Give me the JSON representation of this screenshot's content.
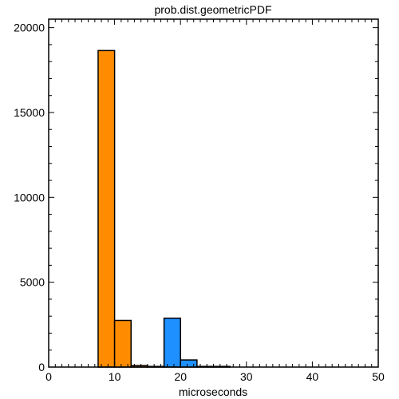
{
  "chart_data": {
    "type": "bar",
    "title": "prob.dist.geometricPDF",
    "xlabel": "microseconds",
    "ylabel": "",
    "xlim": [
      0,
      50
    ],
    "ylim": [
      0,
      20500
    ],
    "x_ticks": [
      0,
      10,
      20,
      30,
      40,
      50
    ],
    "y_ticks": [
      0,
      5000,
      10000,
      15000,
      20000
    ],
    "x_tick_labels": [
      "0",
      "10",
      "20",
      "30",
      "40",
      "50"
    ],
    "y_tick_labels": [
      "0",
      "5000",
      "10000",
      "15000",
      "20000"
    ],
    "grid": false,
    "legend": "none",
    "series": [
      {
        "color": "#ff8c00",
        "bins": [
          {
            "x0": 7.5,
            "x1": 10.0,
            "value": 18650
          },
          {
            "x0": 10.0,
            "x1": 12.5,
            "value": 2750
          },
          {
            "x0": 12.5,
            "x1": 15.0,
            "value": 90
          },
          {
            "x0": 15.0,
            "x1": 17.5,
            "value": 5
          }
        ]
      },
      {
        "color": "#1e90ff",
        "bins": [
          {
            "x0": 17.5,
            "x1": 20.0,
            "value": 2880
          },
          {
            "x0": 20.0,
            "x1": 22.5,
            "value": 420
          },
          {
            "x0": 22.5,
            "x1": 25.0,
            "value": 30
          },
          {
            "x0": 25.0,
            "x1": 27.5,
            "value": 3
          }
        ]
      }
    ]
  }
}
